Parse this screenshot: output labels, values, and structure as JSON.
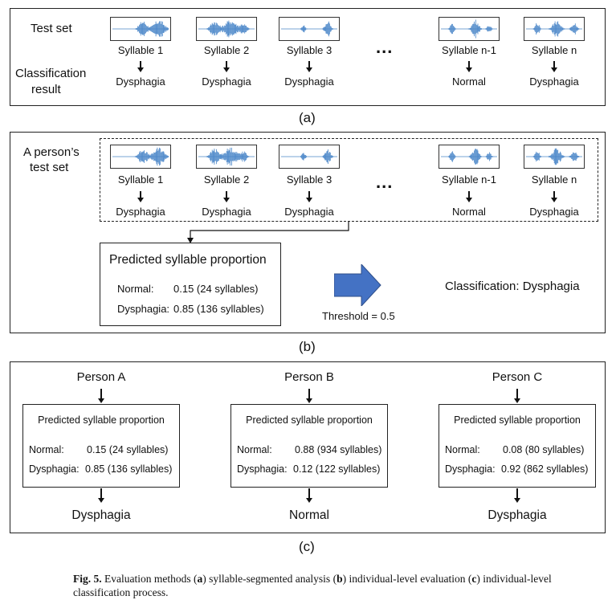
{
  "panel_a": {
    "test_set_label": "Test set",
    "classification_label_line1": "Classification",
    "classification_label_line2": "result",
    "ellipsis": "...",
    "syllables": [
      {
        "name": "Syllable 1",
        "result": "Dysphagia"
      },
      {
        "name": "Syllable 2",
        "result": "Dysphagia"
      },
      {
        "name": "Syllable 3",
        "result": "Dysphagia"
      },
      {
        "name": "Syllable n-1",
        "result": "Normal"
      },
      {
        "name": "Syllable n",
        "result": "Dysphagia"
      }
    ],
    "label": "(a)"
  },
  "panel_b": {
    "person_label_line1": "A person’s",
    "person_label_line2": "test set",
    "ellipsis": "...",
    "syllables": [
      {
        "name": "Syllable 1",
        "result": "Dysphagia"
      },
      {
        "name": "Syllable 2",
        "result": "Dysphagia"
      },
      {
        "name": "Syllable 3",
        "result": "Dysphagia"
      },
      {
        "name": "Syllable n-1",
        "result": "Normal"
      },
      {
        "name": "Syllable n",
        "result": "Dysphagia"
      }
    ],
    "proportion_title": "Predicted syllable proportion",
    "normal_label": "Normal:",
    "normal_value": "0.15 (24 syllables)",
    "dysphagia_label": "Dysphagia:",
    "dysphagia_value": "0.85 (136 syllables)",
    "threshold": "Threshold = 0.5",
    "classification": "Classification: Dysphagia",
    "label": "(b)"
  },
  "panel_c": {
    "persons": [
      {
        "name": "Person A",
        "title": "Predicted syllable proportion",
        "normal_label": "Normal:",
        "normal_value": "0.15 (24 syllables)",
        "dysphagia_label": "Dysphagia:",
        "dysphagia_value": "0.85 (136 syllables)",
        "result": "Dysphagia"
      },
      {
        "name": "Person B",
        "title": "Predicted syllable proportion",
        "normal_label": "Normal:",
        "normal_value": "0.88 (934 syllables)",
        "dysphagia_label": "Dysphagia:",
        "dysphagia_value": "0.12 (122 syllables)",
        "result": "Normal"
      },
      {
        "name": "Person C",
        "title": "Predicted syllable proportion",
        "normal_label": "Normal:",
        "normal_value": "0.08 (80 syllables)",
        "dysphagia_label": "Dysphagia:",
        "dysphagia_value": "0.92 (862 syllables)",
        "result": "Dysphagia"
      }
    ],
    "label": "(c)"
  },
  "caption": {
    "fig": "Fig. 5.",
    "t1": "  Evaluation methods (",
    "a": "a",
    "t2": ") syllable-segmented analysis (",
    "b": "b",
    "t3": ") individual-level evaluation (",
    "c": "c",
    "t4": ") individual-level classification process."
  },
  "colors": {
    "waveform": "#4a86c8",
    "arrow_fill": "#4472c4",
    "border": "#222222"
  }
}
